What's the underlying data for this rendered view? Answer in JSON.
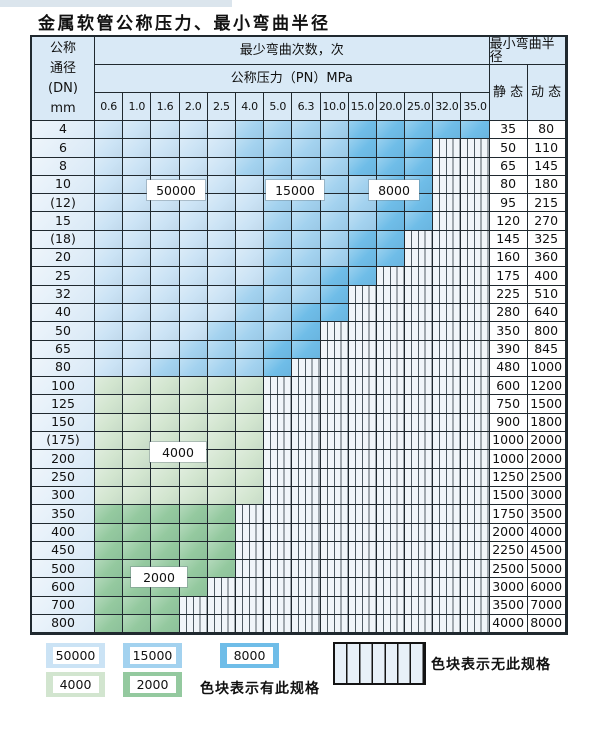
{
  "title": "金属软管公称压力、最小弯曲半径",
  "colors": {
    "light_blue": "#cbe3f5",
    "medium_blue": "#a3d2ef",
    "dark_blue": "#6fbde8",
    "light_green": "#d2e5cf",
    "dark_green": "#94c99f",
    "header_bg": "#d9e9f6",
    "grid_line": "#20292f"
  },
  "table": {
    "header": {
      "dn_lines": [
        "公称",
        "通径",
        "(DN)",
        "mm"
      ],
      "bend_times": "最少弯曲次数，次",
      "pressure": "公称压力（PN）MPa",
      "radius": "最小弯曲半径",
      "static": "静 态",
      "dynamic": "动 态"
    },
    "pressure_columns": [
      "0.6",
      "1.0",
      "1.6",
      "2.0",
      "2.5",
      "4.0",
      "5.0",
      "6.3",
      "10.0",
      "15.0",
      "20.0",
      "25.0",
      "32.0",
      "35.0"
    ],
    "rows": [
      {
        "dn": "4",
        "st": "35",
        "dy": "80",
        "L": 14,
        "m": 6,
        "d": 10
      },
      {
        "dn": "6",
        "st": "50",
        "dy": "110",
        "L": 12,
        "m": 6,
        "d": 10
      },
      {
        "dn": "8",
        "st": "65",
        "dy": "145",
        "L": 12,
        "m": 6,
        "d": 10
      },
      {
        "dn": "10",
        "st": "80",
        "dy": "180",
        "L": 12,
        "m": 7,
        "d": 11
      },
      {
        "dn": "(12)",
        "st": "95",
        "dy": "215",
        "L": 12,
        "m": 7,
        "d": 11
      },
      {
        "dn": "15",
        "st": "120",
        "dy": "270",
        "L": 12,
        "m": 7,
        "d": 11
      },
      {
        "dn": "(18)",
        "st": "145",
        "dy": "325",
        "L": 11,
        "m": 7,
        "d": 10
      },
      {
        "dn": "20",
        "st": "160",
        "dy": "360",
        "L": 11,
        "m": 7,
        "d": 10
      },
      {
        "dn": "25",
        "st": "175",
        "dy": "400",
        "L": 10,
        "m": 7,
        "d": 9
      },
      {
        "dn": "32",
        "st": "225",
        "dy": "510",
        "L": 9,
        "m": 6,
        "d": 9
      },
      {
        "dn": "40",
        "st": "280",
        "dy": "640",
        "L": 9,
        "m": 6,
        "d": 8
      },
      {
        "dn": "50",
        "st": "350",
        "dy": "800",
        "L": 8,
        "m": 5,
        "d": 8
      },
      {
        "dn": "65",
        "st": "390",
        "dy": "845",
        "L": 8,
        "m": 4,
        "d": 7
      },
      {
        "dn": "80",
        "st": "480",
        "dy": "1000",
        "L": 7,
        "m": 3,
        "d": 7
      },
      {
        "dn": "100",
        "st": "600",
        "dy": "1200",
        "L": 6,
        "g": "lg"
      },
      {
        "dn": "125",
        "st": "750",
        "dy": "1500",
        "L": 6,
        "g": "lg"
      },
      {
        "dn": "150",
        "st": "900",
        "dy": "1800",
        "L": 6,
        "g": "lg"
      },
      {
        "dn": "(175)",
        "st": "1000",
        "dy": "2000",
        "L": 6,
        "g": "lg"
      },
      {
        "dn": "200",
        "st": "1000",
        "dy": "2000",
        "L": 6,
        "g": "lg"
      },
      {
        "dn": "250",
        "st": "1250",
        "dy": "2500",
        "L": 6,
        "g": "lg"
      },
      {
        "dn": "300",
        "st": "1500",
        "dy": "3000",
        "L": 6,
        "g": "lg"
      },
      {
        "dn": "350",
        "st": "1750",
        "dy": "3500",
        "L": 5,
        "g": "dg"
      },
      {
        "dn": "400",
        "st": "2000",
        "dy": "4000",
        "L": 5,
        "g": "dg"
      },
      {
        "dn": "450",
        "st": "2250",
        "dy": "4500",
        "L": 5,
        "g": "dg"
      },
      {
        "dn": "500",
        "st": "2500",
        "dy": "5000",
        "L": 5,
        "g": "dg"
      },
      {
        "dn": "600",
        "st": "3000",
        "dy": "6000",
        "L": 4,
        "g": "dg"
      },
      {
        "dn": "700",
        "st": "3500",
        "dy": "7000",
        "L": 3,
        "g": "dg"
      },
      {
        "dn": "800",
        "st": "4000",
        "dy": "8000",
        "L": 3,
        "g": "dg"
      }
    ],
    "region_labels": {
      "label_50000": "50000",
      "label_15000": "15000",
      "label_8000": "8000",
      "label_4000": "4000",
      "label_2000": "2000"
    }
  },
  "legend": {
    "chips": [
      {
        "label": "50000",
        "color": "#cbe3f5"
      },
      {
        "label": "15000",
        "color": "#a3d2ef"
      },
      {
        "label": "8000",
        "color": "#6fbde8"
      },
      {
        "label": "4000",
        "color": "#d2e5cf"
      },
      {
        "label": "2000",
        "color": "#94c99f"
      }
    ],
    "has_spec_text": "色块表示有此规格",
    "no_spec_text": "色块表示无此规格"
  }
}
